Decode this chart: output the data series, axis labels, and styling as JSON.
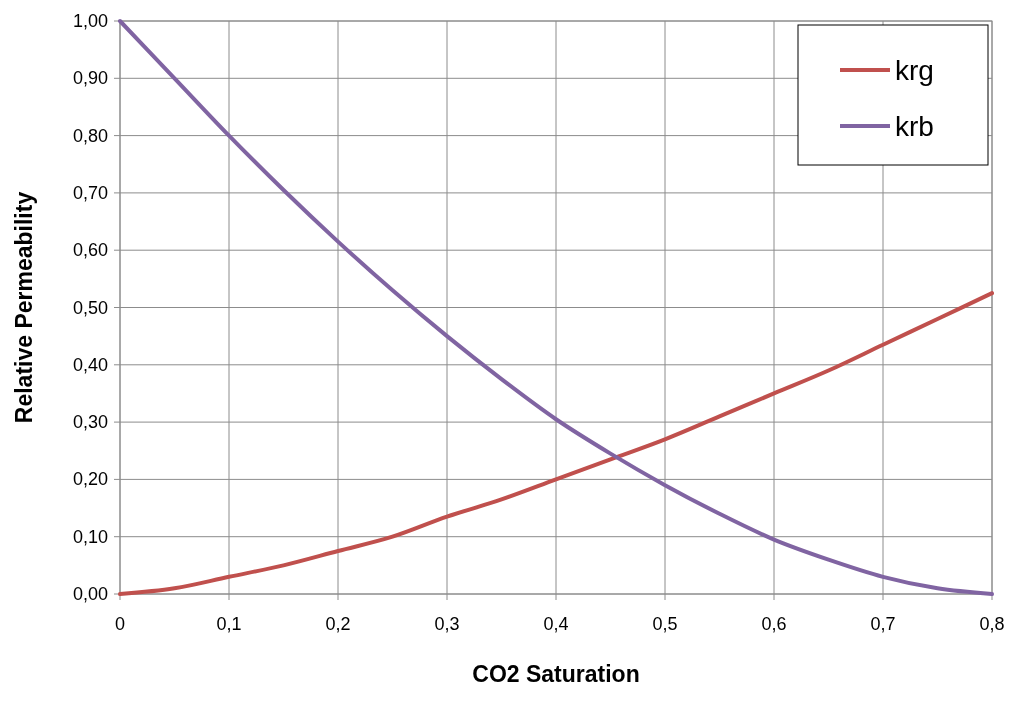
{
  "chart_data": {
    "type": "line",
    "xlabel": "CO2 Saturation",
    "ylabel": "Relative Permeability",
    "x": [
      0,
      0.05,
      0.1,
      0.15,
      0.2,
      0.25,
      0.3,
      0.35,
      0.4,
      0.45,
      0.5,
      0.55,
      0.6,
      0.65,
      0.7,
      0.75,
      0.8
    ],
    "series": [
      {
        "name": "krg",
        "color": "#c0504d",
        "values": [
          0,
          0.01,
          0.03,
          0.05,
          0.075,
          0.1,
          0.135,
          0.165,
          0.2,
          0.235,
          0.27,
          0.31,
          0.35,
          0.39,
          0.435,
          0.48,
          0.525
        ]
      },
      {
        "name": "krb",
        "color": "#8064a2",
        "values": [
          1,
          0.9,
          0.8,
          0.705,
          0.615,
          0.53,
          0.45,
          0.375,
          0.305,
          0.245,
          0.19,
          0.14,
          0.095,
          0.06,
          0.03,
          0.01,
          0
        ]
      }
    ],
    "xlim": [
      0,
      0.8
    ],
    "xticks": [
      0,
      {
        "value": 0.1,
        "label": "0,1"
      },
      {
        "value": 0.2,
        "label": "0,2"
      },
      {
        "value": 0.3,
        "label": "0,3"
      },
      {
        "value": 0.4,
        "label": "0,4"
      },
      {
        "value": 0.5,
        "label": "0,5"
      },
      {
        "value": 0.6,
        "label": "0,6"
      },
      {
        "value": 0.7,
        "label": "0,7"
      },
      {
        "value": 0.8,
        "label": "0,8"
      }
    ],
    "ylim": [
      0,
      1
    ],
    "yticks": [
      {
        "value": 0,
        "label": "0,00"
      },
      {
        "value": 0.1,
        "label": "0,10"
      },
      {
        "value": 0.2,
        "label": "0,20"
      },
      {
        "value": 0.3,
        "label": "0,30"
      },
      {
        "value": 0.4,
        "label": "0,40"
      },
      {
        "value": 0.5,
        "label": "0,50"
      },
      {
        "value": 0.6,
        "label": "0,60"
      },
      {
        "value": 0.7,
        "label": "0,70"
      },
      {
        "value": 0.8,
        "label": "0,80"
      },
      {
        "value": 0.9,
        "label": "0,90"
      },
      {
        "value": 1,
        "label": "1,00"
      }
    ],
    "grid": true,
    "legend": "top right",
    "marker": "none",
    "line_style": "solid"
  }
}
